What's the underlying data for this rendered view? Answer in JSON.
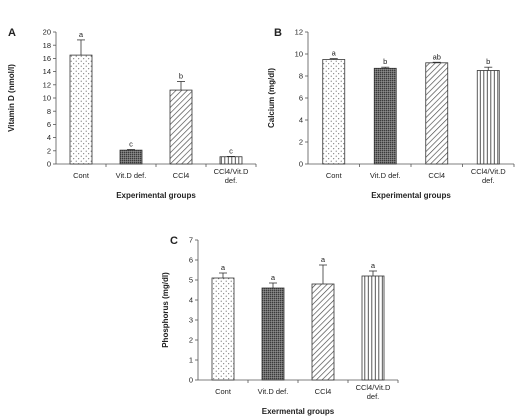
{
  "chart_data": [
    {
      "panel": "A",
      "type": "bar",
      "categories": [
        "Cont",
        "Vit.D def.",
        "CCl4",
        "CCl4/Vit.D def."
      ],
      "values": [
        16.5,
        2.1,
        11.2,
        1.1
      ],
      "errors": [
        2.3,
        0.1,
        1.3,
        0.05
      ],
      "significance": [
        "a",
        "c",
        "b",
        "c"
      ],
      "patterns": [
        "dots",
        "dense-dots",
        "diag-right",
        "vertical"
      ],
      "xlabel": "Experimental groups",
      "ylabel": "Vitamin D (nmol/l)",
      "ylim": [
        0,
        20
      ],
      "ticks": [
        0,
        2,
        4,
        6,
        8,
        10,
        12,
        14,
        16,
        18,
        20
      ]
    },
    {
      "panel": "B",
      "type": "bar",
      "categories": [
        "Cont",
        "Vit.D def.",
        "CCl4",
        "CCl4/Vit.D def."
      ],
      "values": [
        9.5,
        8.7,
        9.2,
        8.5
      ],
      "errors": [
        0.08,
        0.1,
        0.05,
        0.3
      ],
      "significance": [
        "a",
        "b",
        "ab",
        "b"
      ],
      "patterns": [
        "dots",
        "dense-dots",
        "diag-right",
        "vertical"
      ],
      "xlabel": "Experimental groups",
      "ylabel": "Calcium (mg/dl)",
      "ylim": [
        0,
        12
      ],
      "ticks": [
        0,
        2,
        4,
        6,
        8,
        10,
        12
      ]
    },
    {
      "panel": "C",
      "type": "bar",
      "categories": [
        "Cont",
        "Vit.D def.",
        "CCl4",
        "CCl4/Vit.D def."
      ],
      "values": [
        5.1,
        4.6,
        4.8,
        5.2
      ],
      "errors": [
        0.25,
        0.25,
        0.95,
        0.25
      ],
      "significance": [
        "a",
        "a",
        "a",
        "a"
      ],
      "patterns": [
        "dots",
        "dense-dots",
        "diag-right",
        "vertical"
      ],
      "xlabel": "Exermental groups",
      "ylabel": "Phosphorus (mg/dl)",
      "ylim": [
        0,
        7
      ],
      "ticks": [
        0,
        1,
        2,
        3,
        4,
        5,
        6,
        7
      ]
    }
  ]
}
